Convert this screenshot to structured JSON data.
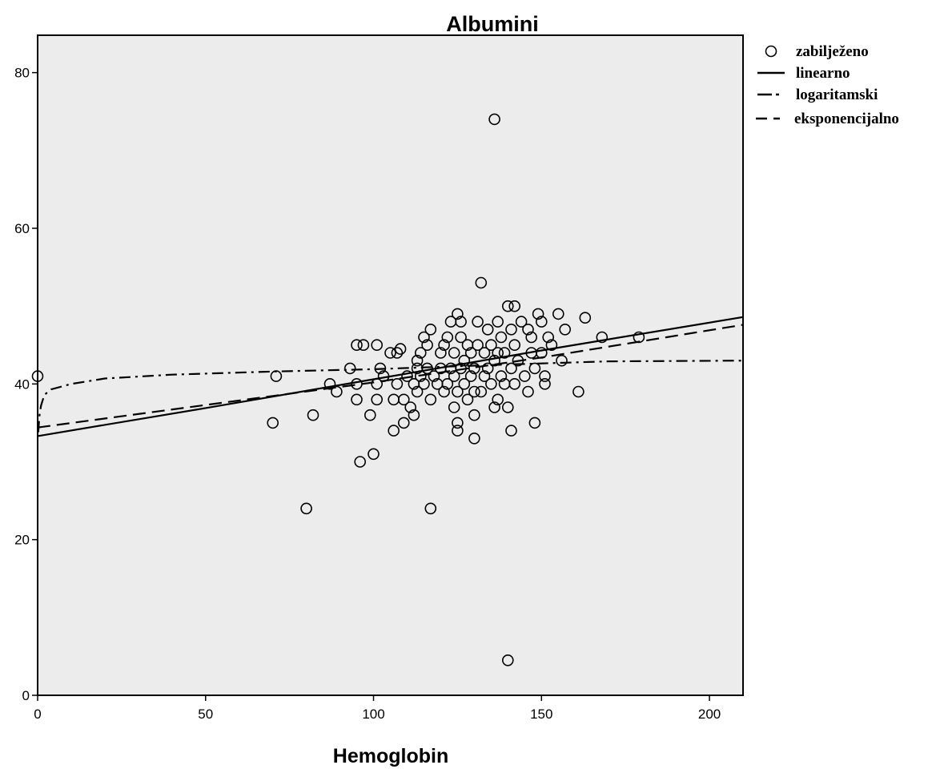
{
  "chart_data": {
    "type": "scatter",
    "title": "Albumini",
    "xlabel": "Hemoglobin",
    "ylabel": "",
    "xlim": [
      0,
      210
    ],
    "ylim": [
      0,
      80
    ],
    "x_ticks": [
      0,
      50,
      100,
      150,
      200
    ],
    "y_ticks": [
      0,
      20,
      40,
      60,
      80
    ],
    "grid": false,
    "legend_position": "top-right outside",
    "colors": {
      "plot_background": "#ececec",
      "marker": "#000000",
      "line": "#000000"
    },
    "legend": [
      {
        "label": "zabilježeno",
        "symbol": "circle"
      },
      {
        "label": "linearno",
        "symbol": "solid"
      },
      {
        "label": "logaritamski",
        "symbol": "dash-dot"
      },
      {
        "label": "eksponencijalno",
        "symbol": "dashed"
      }
    ],
    "series": [
      {
        "name": "zabilježeno",
        "kind": "scatter",
        "points": [
          [
            0,
            41
          ],
          [
            70,
            35
          ],
          [
            71,
            41
          ],
          [
            80,
            24
          ],
          [
            82,
            36
          ],
          [
            87,
            40
          ],
          [
            89,
            39
          ],
          [
            93,
            42
          ],
          [
            95,
            38
          ],
          [
            95,
            40
          ],
          [
            95,
            45
          ],
          [
            96,
            30
          ],
          [
            97,
            45
          ],
          [
            99,
            36
          ],
          [
            100,
            31
          ],
          [
            101,
            38
          ],
          [
            101,
            40
          ],
          [
            101,
            45
          ],
          [
            102,
            42
          ],
          [
            103,
            41
          ],
          [
            105,
            44
          ],
          [
            106,
            34
          ],
          [
            106,
            38
          ],
          [
            107,
            40
          ],
          [
            107,
            44
          ],
          [
            108,
            44.5
          ],
          [
            109,
            35
          ],
          [
            109,
            38
          ],
          [
            110,
            41
          ],
          [
            111,
            37
          ],
          [
            112,
            36
          ],
          [
            112,
            40
          ],
          [
            113,
            42
          ],
          [
            113,
            43
          ],
          [
            113,
            39
          ],
          [
            114,
            44
          ],
          [
            114,
            41
          ],
          [
            115,
            46
          ],
          [
            115,
            40
          ],
          [
            116,
            42
          ],
          [
            116,
            45
          ],
          [
            117,
            24
          ],
          [
            117,
            38
          ],
          [
            117,
            47
          ],
          [
            118,
            41
          ],
          [
            119,
            40
          ],
          [
            120,
            42
          ],
          [
            120,
            44
          ],
          [
            121,
            39
          ],
          [
            121,
            45
          ],
          [
            122,
            40
          ],
          [
            122,
            46
          ],
          [
            123,
            42
          ],
          [
            123,
            48
          ],
          [
            124,
            37
          ],
          [
            124,
            41
          ],
          [
            124,
            44
          ],
          [
            125,
            34
          ],
          [
            125,
            35
          ],
          [
            125,
            39
          ],
          [
            125,
            49
          ],
          [
            126,
            42
          ],
          [
            126,
            46
          ],
          [
            126,
            48
          ],
          [
            127,
            40
          ],
          [
            127,
            43
          ],
          [
            128,
            45
          ],
          [
            128,
            38
          ],
          [
            129,
            41
          ],
          [
            129,
            44
          ],
          [
            130,
            33
          ],
          [
            130,
            36
          ],
          [
            130,
            39
          ],
          [
            130,
            42
          ],
          [
            131,
            45
          ],
          [
            131,
            48
          ],
          [
            132,
            39
          ],
          [
            132,
            53
          ],
          [
            133,
            41
          ],
          [
            133,
            44
          ],
          [
            134,
            47
          ],
          [
            134,
            42
          ],
          [
            135,
            40
          ],
          [
            135,
            45
          ],
          [
            136,
            37
          ],
          [
            136,
            74
          ],
          [
            136,
            43
          ],
          [
            137,
            38
          ],
          [
            137,
            48
          ],
          [
            137,
            44
          ],
          [
            138,
            41
          ],
          [
            138,
            46
          ],
          [
            139,
            40
          ],
          [
            139,
            44
          ],
          [
            140,
            4.5
          ],
          [
            140,
            37
          ],
          [
            140,
            50
          ],
          [
            141,
            34
          ],
          [
            141,
            42
          ],
          [
            141,
            47
          ],
          [
            142,
            40
          ],
          [
            142,
            45
          ],
          [
            142,
            50
          ],
          [
            143,
            43
          ],
          [
            144,
            48
          ],
          [
            145,
            41
          ],
          [
            146,
            39
          ],
          [
            146,
            47
          ],
          [
            147,
            44
          ],
          [
            147,
            46
          ],
          [
            148,
            35
          ],
          [
            148,
            42
          ],
          [
            149,
            49
          ],
          [
            150,
            44
          ],
          [
            150,
            48
          ],
          [
            151,
            40
          ],
          [
            151,
            41
          ],
          [
            152,
            46
          ],
          [
            153,
            45
          ],
          [
            155,
            49
          ],
          [
            156,
            43
          ],
          [
            157,
            47
          ],
          [
            161,
            39
          ],
          [
            163,
            48.5
          ],
          [
            168,
            46
          ],
          [
            179,
            46
          ]
        ]
      },
      {
        "name": "linearno",
        "kind": "line",
        "style": "solid",
        "points": [
          [
            0,
            33.3
          ],
          [
            50,
            36.9
          ],
          [
            100,
            40.6
          ],
          [
            150,
            44.3
          ],
          [
            210,
            48.6
          ]
        ]
      },
      {
        "name": "logaritamski",
        "kind": "line",
        "style": "dash-dot",
        "points": [
          [
            0.2,
            33.8
          ],
          [
            0.5,
            35.8
          ],
          [
            1,
            37.2
          ],
          [
            2,
            38.6
          ],
          [
            4,
            39.3
          ],
          [
            10,
            40
          ],
          [
            20,
            40.7
          ],
          [
            40,
            41.2
          ],
          [
            70,
            41.6
          ],
          [
            100,
            41.9
          ],
          [
            140,
            42.5
          ],
          [
            170,
            42.9
          ],
          [
            210,
            43
          ]
        ]
      },
      {
        "name": "eksponencijalno",
        "kind": "line",
        "style": "dashed",
        "points": [
          [
            0,
            34.4
          ],
          [
            50,
            37.3
          ],
          [
            100,
            40.2
          ],
          [
            150,
            43.4
          ],
          [
            210,
            47.6
          ]
        ]
      }
    ]
  }
}
